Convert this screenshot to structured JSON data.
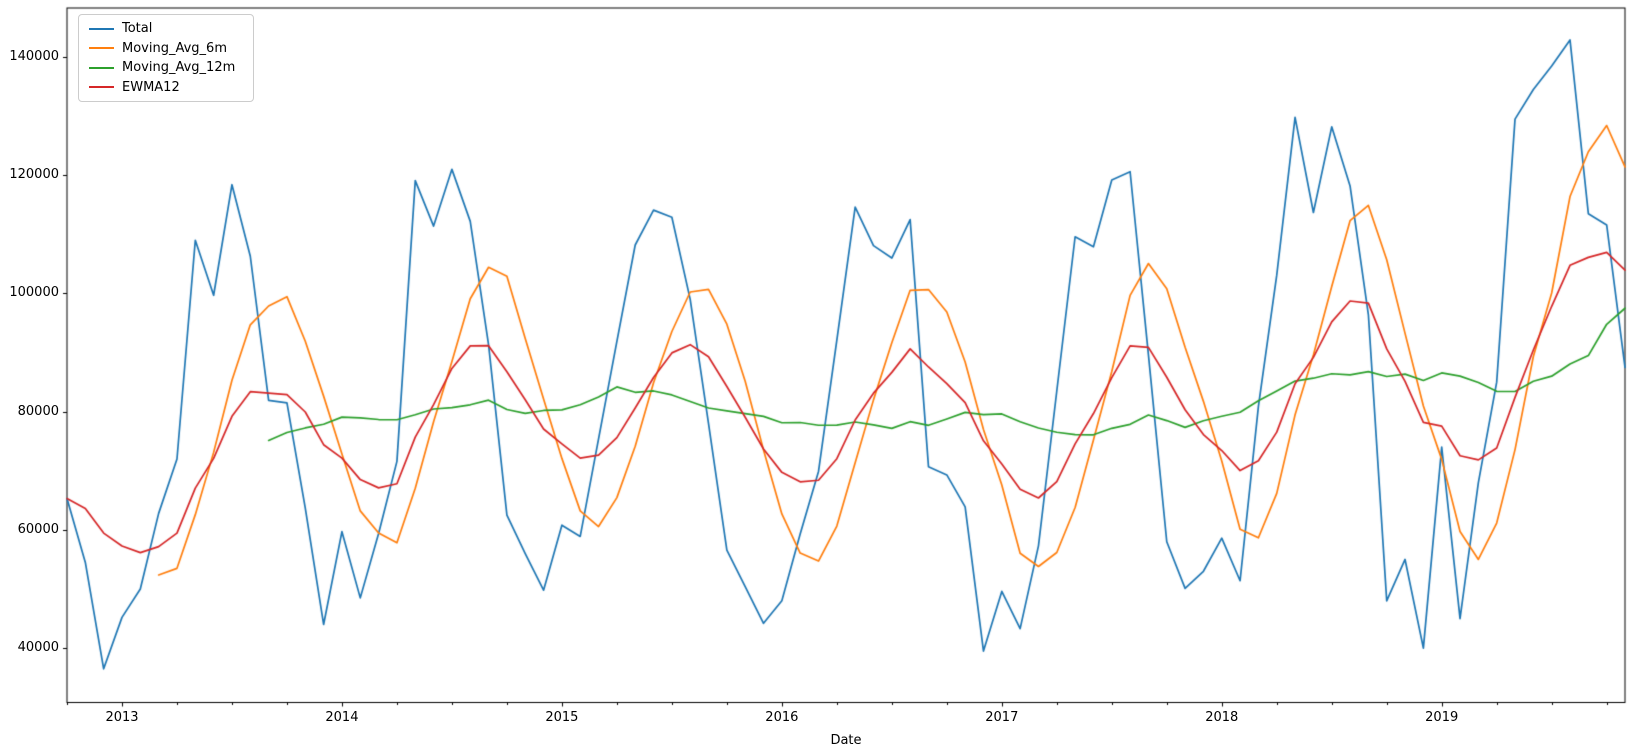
{
  "chart_data": {
    "type": "line",
    "title": "",
    "xlabel": "Date",
    "x_start": "2012-10",
    "x_frequency": "monthly",
    "n_points": 86,
    "grid": false,
    "legend_position": "upper-left",
    "ylim": [
      30800,
      148300
    ],
    "y_ticks": [
      {
        "value": 40000,
        "label": "40000"
      },
      {
        "value": 60000,
        "label": "60000"
      },
      {
        "value": 80000,
        "label": "80000"
      },
      {
        "value": 100000,
        "label": "100000"
      },
      {
        "value": 120000,
        "label": "120000"
      },
      {
        "value": 140000,
        "label": "140000"
      }
    ],
    "x_ticks": [
      {
        "index": 3,
        "label": "2013"
      },
      {
        "index": 15,
        "label": "2014"
      },
      {
        "index": 27,
        "label": "2015"
      },
      {
        "index": 39,
        "label": "2016"
      },
      {
        "index": 51,
        "label": "2017"
      },
      {
        "index": 63,
        "label": "2018"
      },
      {
        "index": 75,
        "label": "2019"
      }
    ],
    "series": [
      {
        "name": "Total",
        "color": "#1f77b4",
        "kind": "raw",
        "values": [
          65300,
          54500,
          36500,
          45200,
          50000,
          62800,
          72000,
          109000,
          99700,
          118400,
          106300,
          81900,
          81500,
          63700,
          44000,
          59700,
          48500,
          59400,
          71600,
          119100,
          111400,
          121000,
          112200,
          91300,
          62500,
          56000,
          49800,
          60800,
          58900,
          75400,
          91900,
          108200,
          114100,
          112900,
          99000,
          78000,
          56600,
          50400,
          44200,
          48000,
          59300,
          69900,
          92100,
          114600,
          108100,
          106000,
          112500,
          70700,
          69300,
          63900,
          39500,
          49600,
          43300,
          57300,
          83500,
          109600,
          107900,
          119200,
          120600,
          89600,
          58000,
          50100,
          53000,
          58600,
          51400,
          80900,
          103100,
          129800,
          113700,
          128200,
          118200,
          96400,
          48000,
          55000,
          40000,
          74000,
          45000,
          68000,
          85000,
          129500,
          134500,
          138500,
          142900,
          113500,
          111600,
          87500
        ]
      },
      {
        "name": "Moving_Avg_6m",
        "color": "#ff7f0e",
        "kind": "rolling_mean",
        "window": 6
      },
      {
        "name": "Moving_Avg_12m",
        "color": "#2ca02c",
        "kind": "rolling_mean",
        "window": 12
      },
      {
        "name": "EWMA12",
        "color": "#d62728",
        "kind": "ewma",
        "span": 12
      }
    ]
  }
}
